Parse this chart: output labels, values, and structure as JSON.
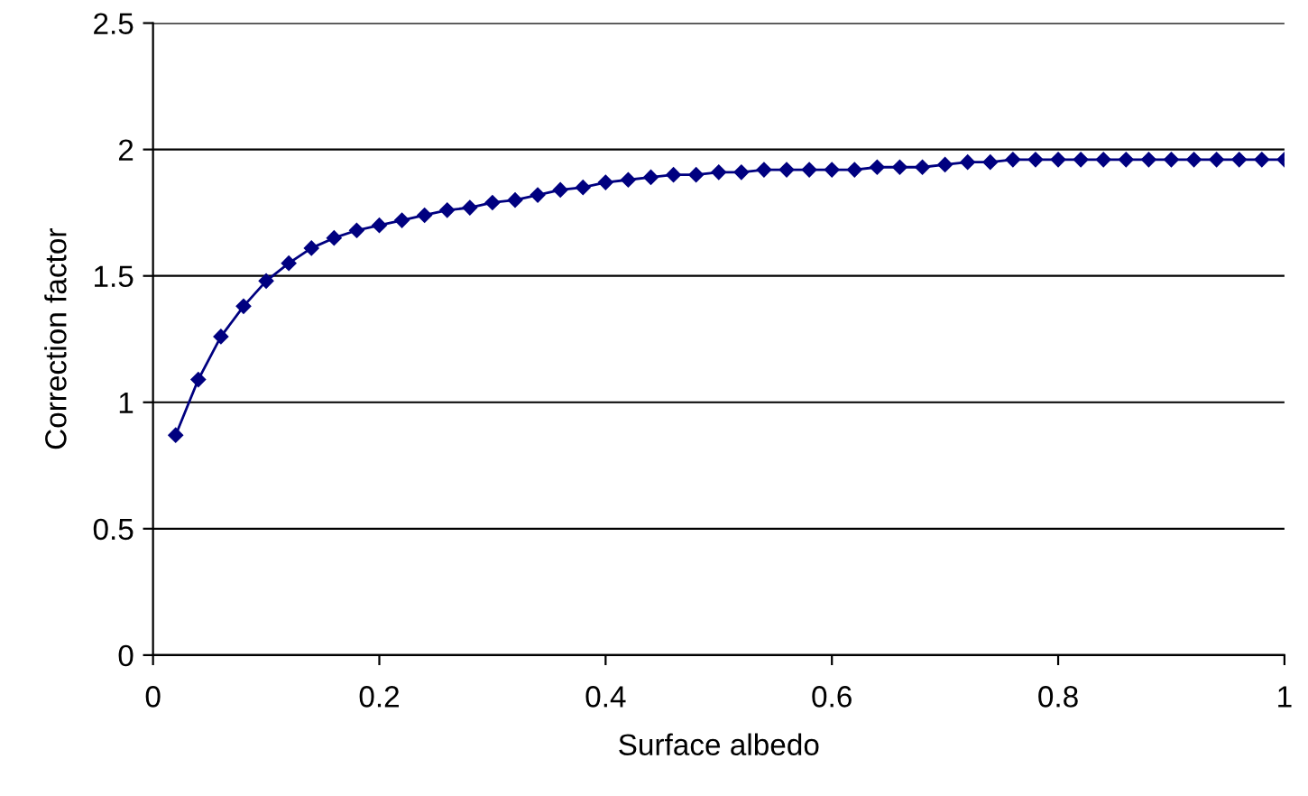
{
  "chart_data": {
    "type": "line",
    "xlabel": "Surface albedo",
    "ylabel": "Correction factor",
    "x": [
      0.02,
      0.04,
      0.06,
      0.08,
      0.1,
      0.12,
      0.14,
      0.16,
      0.18,
      0.2,
      0.22,
      0.24,
      0.26,
      0.28,
      0.3,
      0.32,
      0.34,
      0.36,
      0.38,
      0.4,
      0.42,
      0.44,
      0.46,
      0.48,
      0.5,
      0.52,
      0.54,
      0.56,
      0.58,
      0.6,
      0.62,
      0.64,
      0.66,
      0.68,
      0.7,
      0.72,
      0.74,
      0.76,
      0.78,
      0.8,
      0.82,
      0.84,
      0.86,
      0.88,
      0.9,
      0.92,
      0.94,
      0.96,
      0.98,
      1.0
    ],
    "series": [
      {
        "color": "#000080",
        "values": [
          0.87,
          1.09,
          1.26,
          1.38,
          1.48,
          1.55,
          1.61,
          1.65,
          1.68,
          1.7,
          1.72,
          1.74,
          1.76,
          1.77,
          1.79,
          1.8,
          1.82,
          1.84,
          1.85,
          1.87,
          1.88,
          1.89,
          1.9,
          1.9,
          1.91,
          1.91,
          1.92,
          1.92,
          1.92,
          1.92,
          1.92,
          1.93,
          1.93,
          1.93,
          1.94,
          1.95,
          1.95,
          1.96,
          1.96,
          1.96,
          1.96,
          1.96,
          1.96,
          1.96,
          1.96,
          1.96,
          1.96,
          1.96,
          1.96,
          1.96
        ]
      }
    ],
    "xlim": [
      0,
      1
    ],
    "xticks": [
      0,
      0.2,
      0.4,
      0.6,
      0.8,
      1
    ],
    "ylim": [
      0,
      2.5
    ],
    "yticks": [
      0,
      0.5,
      1,
      1.5,
      2,
      2.5
    ],
    "grid": "y",
    "legend": false,
    "marker": "diamond",
    "line_style": "solid"
  }
}
